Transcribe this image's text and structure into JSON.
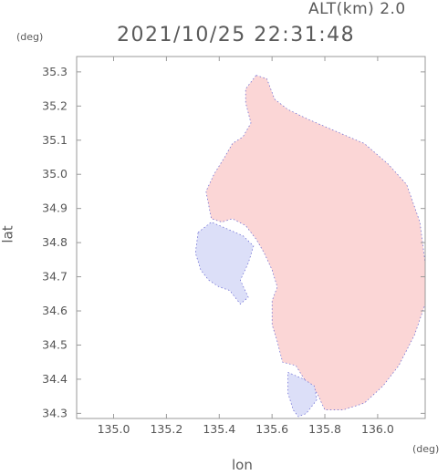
{
  "header": {
    "altitude_label": "ALT(km) 2.0",
    "timestamp": "2021/10/25 22:31:48"
  },
  "chart_data": {
    "type": "heatmap",
    "xlabel": "lon",
    "ylabel": "lat",
    "x_unit": "(deg)",
    "y_unit": "(deg)",
    "xlim": [
      134.86,
      136.18
    ],
    "ylim": [
      34.285,
      35.345
    ],
    "x_ticks": [
      "135.0",
      "135.2",
      "135.4",
      "135.6",
      "135.8",
      "136.0"
    ],
    "x_tick_values": [
      135.0,
      135.2,
      135.4,
      135.6,
      135.8,
      136.0
    ],
    "y_ticks": [
      "35.3",
      "35.2",
      "35.1",
      "35.0",
      "34.9",
      "34.8",
      "34.7",
      "34.6",
      "34.5",
      "34.4",
      "34.3"
    ],
    "y_tick_values": [
      35.3,
      35.2,
      35.1,
      35.0,
      34.9,
      34.8,
      34.7,
      34.6,
      34.5,
      34.4,
      34.3
    ],
    "grid": false,
    "colors": {
      "positive": "#fbd6d6",
      "positive_strong": "#f7c2c2",
      "negative": "#dcdff8",
      "negative_strong": "#b9bff0",
      "edge": "#6060d0",
      "frame": "#9a9a9a"
    },
    "regions": [
      {
        "name": "main-positive-echo",
        "sign": "positive",
        "outline": [
          [
            135.54,
            35.29
          ],
          [
            135.58,
            35.28
          ],
          [
            135.61,
            35.22
          ],
          [
            135.66,
            35.19
          ],
          [
            135.74,
            35.16
          ],
          [
            135.86,
            35.12
          ],
          [
            135.95,
            35.09
          ],
          [
            136.04,
            35.03
          ],
          [
            136.11,
            34.97
          ],
          [
            136.16,
            34.86
          ],
          [
            136.18,
            34.74
          ],
          [
            136.18,
            34.62
          ],
          [
            136.14,
            34.53
          ],
          [
            136.08,
            34.44
          ],
          [
            136.02,
            34.38
          ],
          [
            135.95,
            34.33
          ],
          [
            135.87,
            34.31
          ],
          [
            135.8,
            34.31
          ],
          [
            135.77,
            34.36
          ],
          [
            135.73,
            34.39
          ],
          [
            135.69,
            34.44
          ],
          [
            135.64,
            34.45
          ],
          [
            135.62,
            34.51
          ],
          [
            135.6,
            34.56
          ],
          [
            135.6,
            34.63
          ],
          [
            135.62,
            34.67
          ],
          [
            135.6,
            34.72
          ],
          [
            135.57,
            34.77
          ],
          [
            135.54,
            34.81
          ],
          [
            135.5,
            34.85
          ],
          [
            135.45,
            34.87
          ],
          [
            135.41,
            34.86
          ],
          [
            135.37,
            34.87
          ],
          [
            135.36,
            34.91
          ],
          [
            135.35,
            34.95
          ],
          [
            135.38,
            35.0
          ],
          [
            135.42,
            35.05
          ],
          [
            135.45,
            35.09
          ],
          [
            135.49,
            35.11
          ],
          [
            135.52,
            35.15
          ],
          [
            135.5,
            35.21
          ],
          [
            135.5,
            35.25
          ]
        ]
      },
      {
        "name": "western-negative-echo",
        "sign": "negative",
        "outline": [
          [
            135.32,
            34.83
          ],
          [
            135.37,
            34.86
          ],
          [
            135.43,
            34.84
          ],
          [
            135.49,
            34.82
          ],
          [
            135.53,
            34.79
          ],
          [
            135.51,
            34.74
          ],
          [
            135.48,
            34.69
          ],
          [
            135.51,
            34.64
          ],
          [
            135.48,
            34.62
          ],
          [
            135.44,
            34.66
          ],
          [
            135.4,
            34.67
          ],
          [
            135.36,
            34.69
          ],
          [
            135.33,
            34.72
          ],
          [
            135.31,
            34.77
          ]
        ]
      },
      {
        "name": "southern-negative-echo",
        "sign": "negative",
        "outline": [
          [
            135.66,
            34.42
          ],
          [
            135.72,
            34.4
          ],
          [
            135.76,
            34.38
          ],
          [
            135.77,
            34.34
          ],
          [
            135.73,
            34.3
          ],
          [
            135.7,
            34.29
          ],
          [
            135.68,
            34.31
          ],
          [
            135.66,
            34.36
          ]
        ]
      }
    ]
  }
}
